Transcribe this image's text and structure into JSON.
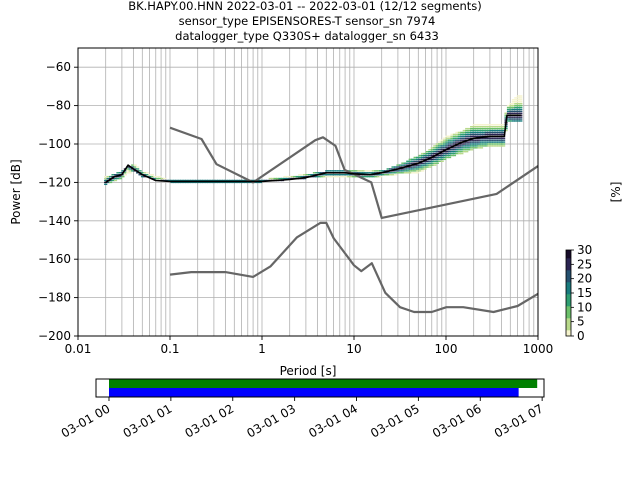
{
  "title_lines": [
    "BK.HAPY.00.HNN   2022-03-01 -- 2022-03-01  (12/12 segments)",
    "sensor_type EPISENSORES-T sensor_sn 7974",
    "datalogger_type Q330S+ datalogger_sn 6433"
  ],
  "chart_data": [
    {
      "type": "heatmap",
      "xlabel": "Period [s]",
      "ylabel": "Power [dB]",
      "x_scale": "log",
      "xlim": [
        0.01,
        1000
      ],
      "ylim": [
        -200,
        -50
      ],
      "grid": true,
      "x_ticks": [
        {
          "value": 0.01,
          "label": "0.01"
        },
        {
          "value": 0.1,
          "label": "0.1"
        },
        {
          "value": 1,
          "label": "1"
        },
        {
          "value": 10,
          "label": "10"
        },
        {
          "value": 100,
          "label": "100"
        },
        {
          "value": 1000,
          "label": "1000"
        }
      ],
      "y_ticks": [
        {
          "value": -60,
          "label": "−60"
        },
        {
          "value": -80,
          "label": "−80"
        },
        {
          "value": -100,
          "label": "−100"
        },
        {
          "value": -120,
          "label": "−120"
        },
        {
          "value": -140,
          "label": "−140"
        },
        {
          "value": -160,
          "label": "−160"
        },
        {
          "value": -180,
          "label": "−180"
        },
        {
          "value": -200,
          "label": "−200"
        }
      ],
      "noise_model_high": {
        "x": [
          0.1,
          0.22,
          0.32,
          0.8,
          3.8,
          4.6,
          6.3,
          7.9,
          15.4,
          20,
          354.8,
          1000
        ],
        "y": [
          -91.5,
          -97.4,
          -110.5,
          -120,
          -98,
          -96.5,
          -101,
          -113.5,
          -120,
          -138.5,
          -126,
          -111.5
        ]
      },
      "noise_model_low": {
        "x": [
          0.1,
          0.17,
          0.4,
          0.8,
          1.24,
          2.4,
          4.3,
          5,
          6,
          10,
          12,
          15.6,
          21.9,
          31.6,
          45,
          70,
          101,
          154,
          328,
          600,
          1000
        ],
        "y": [
          -168,
          -166.7,
          -166.7,
          -169.2,
          -163.7,
          -148.6,
          -141.1,
          -141.1,
          -149,
          -163.2,
          -166.2,
          -162.1,
          -177.5,
          -185,
          -187.5,
          -187.5,
          -185,
          -185,
          -187.5,
          -184.4,
          -178
        ]
      },
      "median_psd": {
        "x": [
          0.02,
          0.025,
          0.03,
          0.035,
          0.04,
          0.05,
          0.07,
          0.1,
          0.2,
          0.5,
          1,
          2,
          3,
          5,
          8,
          10,
          15,
          20,
          30,
          50,
          70,
          100,
          150,
          200,
          300,
          430,
          460,
          600,
          650
        ],
        "y": [
          -120,
          -117,
          -116,
          -111,
          -113,
          -116,
          -119,
          -119.5,
          -119.5,
          -119.5,
          -119.5,
          -118.5,
          -117.5,
          -115,
          -115,
          -115.5,
          -116,
          -115,
          -113,
          -110,
          -107,
          -103,
          -99,
          -97,
          -96,
          -96,
          -85,
          -85,
          -85
        ]
      },
      "psd_spread": {
        "x": [
          0.02,
          0.03,
          0.04,
          0.05,
          0.1,
          1,
          5,
          10,
          20,
          30,
          50,
          70,
          100,
          150,
          200,
          300,
          430,
          460,
          600,
          650
        ],
        "upper": [
          -117,
          -114,
          -110,
          -114,
          -118.5,
          -118.5,
          -114,
          -114,
          -114,
          -111,
          -106,
          -102,
          -96,
          -93,
          -90,
          -90,
          -90,
          -80,
          -75,
          -75
        ],
        "lower": [
          -121,
          -118,
          -114,
          -117,
          -120,
          -120,
          -117,
          -117,
          -117,
          -116,
          -115,
          -112,
          -108,
          -105,
          -103,
          -101,
          -101,
          -89,
          -88,
          -88
        ]
      },
      "colorbar": {
        "label": "[%]",
        "range": [
          0,
          30
        ],
        "ticks": [
          "0",
          "5",
          "10",
          "15",
          "20",
          "25",
          "30"
        ],
        "colors": [
          "#f5f3cc",
          "#b8d98a",
          "#6cc06a",
          "#2e9e72",
          "#197b7e",
          "#25506f",
          "#2b2552",
          "#180c2a"
        ]
      }
    },
    {
      "type": "bar",
      "x_axis": "time",
      "xlim_hours": [
        -0.21,
        7.03
      ],
      "x_ticks": [
        {
          "value": 0,
          "label": "03-01 00"
        },
        {
          "value": 1,
          "label": "03-01 01"
        },
        {
          "value": 2,
          "label": "03-01 02"
        },
        {
          "value": 3,
          "label": "03-01 03"
        },
        {
          "value": 4,
          "label": "03-01 04"
        },
        {
          "value": 5,
          "label": "03-01 05"
        },
        {
          "value": 6,
          "label": "03-01 06"
        },
        {
          "value": 7,
          "label": "03-01 07"
        }
      ],
      "bars": [
        {
          "start_hour": 0,
          "end_hour": 6.92,
          "color": "#008000"
        },
        {
          "start_hour": 0,
          "end_hour": 6.62,
          "color": "#0000ff"
        }
      ]
    }
  ]
}
